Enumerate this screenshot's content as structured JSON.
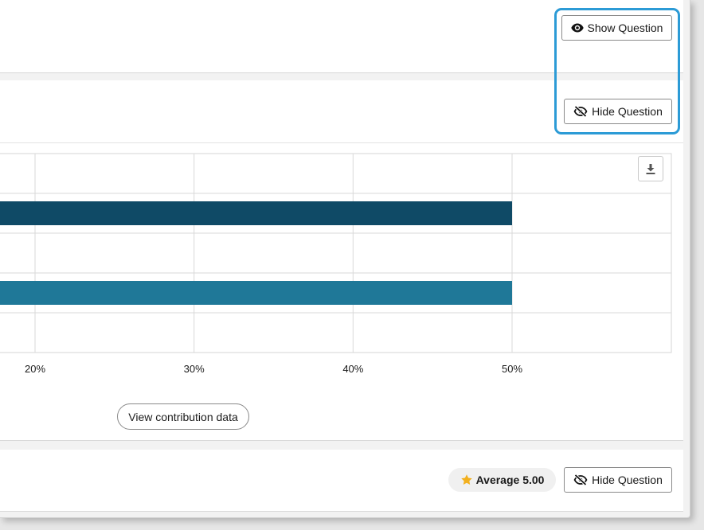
{
  "top_section": {
    "show_question_label": "Show Question",
    "hide_question_label": "Hide Question"
  },
  "chart_toolbar": {
    "download_icon": "download-icon"
  },
  "chart_data": {
    "type": "bar",
    "orientation": "horizontal",
    "categories": [
      "",
      ""
    ],
    "values": [
      50,
      50
    ],
    "colors": [
      "#0f4a66",
      "#1f7898"
    ],
    "x_ticks": [
      "20%",
      "30%",
      "40%",
      "50%"
    ],
    "x_tick_values": [
      20,
      30,
      40,
      50
    ],
    "xlim_visible": [
      15,
      60
    ],
    "grid": true,
    "title": "",
    "xlabel": "",
    "ylabel": ""
  },
  "contribution": {
    "view_label": "View contribution data"
  },
  "bottom_section": {
    "average_label": "Average 5.00",
    "star_color": "#f2b01e",
    "hide_question_label": "Hide Question"
  }
}
